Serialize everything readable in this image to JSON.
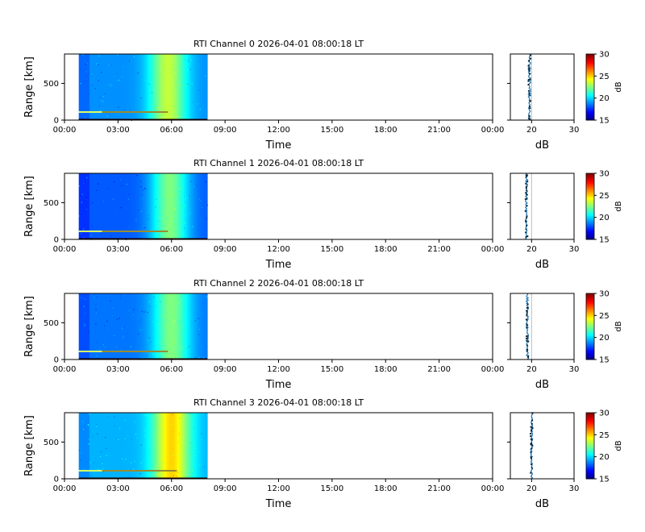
{
  "chart_data": [
    {
      "type": "heatmap",
      "title": "RTI Channel 0 2026-04-01 08:00:18 LT",
      "xlabel": "Time",
      "ylabel": "Range [km]",
      "x_ticks": [
        "00:00",
        "03:00",
        "06:00",
        "09:00",
        "12:00",
        "15:00",
        "18:00",
        "21:00",
        "00:00"
      ],
      "x_range_hours": [
        0,
        24
      ],
      "data_time_range_hours": [
        0.8,
        8.0
      ],
      "y_ticks": [
        0,
        500
      ],
      "y_range": [
        0,
        900
      ],
      "heat_peak_hour": 5.8,
      "heat_peak_db": 23.5,
      "heat_base_db": 19.0,
      "echo_line": {
        "range_km": 110,
        "start_hour": 0.8,
        "end_hour": 5.8
      },
      "profile": {
        "xlabel": "dB",
        "x_ticks": [
          20,
          30
        ],
        "x_range": [
          15,
          30
        ],
        "mean_db": 19.5,
        "reference_db": 20
      },
      "colorbar": {
        "label": "dB",
        "ticks": [
          15,
          20,
          25,
          30
        ],
        "range": [
          15,
          30
        ],
        "colormap": "jet"
      }
    },
    {
      "type": "heatmap",
      "title": "RTI Channel 1 2026-04-01 08:00:18 LT",
      "xlabel": "Time",
      "ylabel": "Range [km]",
      "x_ticks": [
        "00:00",
        "03:00",
        "06:00",
        "09:00",
        "12:00",
        "15:00",
        "18:00",
        "21:00",
        "00:00"
      ],
      "x_range_hours": [
        0,
        24
      ],
      "data_time_range_hours": [
        0.8,
        8.0
      ],
      "y_ticks": [
        0,
        500
      ],
      "y_range": [
        0,
        900
      ],
      "heat_peak_hour": 5.9,
      "heat_peak_db": 22.5,
      "heat_base_db": 18.2,
      "echo_line": {
        "range_km": 110,
        "start_hour": 0.8,
        "end_hour": 5.8
      },
      "profile": {
        "xlabel": "dB",
        "x_ticks": [
          20,
          30
        ],
        "x_range": [
          15,
          30
        ],
        "mean_db": 18.8,
        "reference_db": 20
      },
      "colorbar": {
        "label": "dB",
        "ticks": [
          15,
          20,
          25,
          30
        ],
        "range": [
          15,
          30
        ],
        "colormap": "jet"
      }
    },
    {
      "type": "heatmap",
      "title": "RTI Channel 2 2026-04-01 08:00:18 LT",
      "xlabel": "Time",
      "ylabel": "Range [km]",
      "x_ticks": [
        "00:00",
        "03:00",
        "06:00",
        "09:00",
        "12:00",
        "15:00",
        "18:00",
        "21:00",
        "00:00"
      ],
      "x_range_hours": [
        0,
        24
      ],
      "data_time_range_hours": [
        0.8,
        8.0
      ],
      "y_ticks": [
        0,
        500
      ],
      "y_range": [
        0,
        900
      ],
      "heat_peak_hour": 6.0,
      "heat_peak_db": 22.5,
      "heat_base_db": 18.6,
      "echo_line": {
        "range_km": 110,
        "start_hour": 0.8,
        "end_hour": 5.8
      },
      "profile": {
        "xlabel": "dB",
        "x_ticks": [
          20,
          30
        ],
        "x_range": [
          15,
          30
        ],
        "mean_db": 19.0,
        "reference_db": 20
      },
      "colorbar": {
        "label": "dB",
        "ticks": [
          15,
          20,
          25,
          30
        ],
        "range": [
          15,
          30
        ],
        "colormap": "jet"
      }
    },
    {
      "type": "heatmap",
      "title": "RTI Channel 3 2026-04-01 08:00:18 LT",
      "xlabel": "Time",
      "ylabel": "Range [km]",
      "x_ticks": [
        "00:00",
        "03:00",
        "06:00",
        "09:00",
        "12:00",
        "15:00",
        "18:00",
        "21:00",
        "00:00"
      ],
      "x_range_hours": [
        0,
        24
      ],
      "data_time_range_hours": [
        0.8,
        8.0
      ],
      "y_ticks": [
        0,
        500
      ],
      "y_range": [
        0,
        900
      ],
      "heat_peak_hour": 6.0,
      "heat_peak_db": 25.0,
      "heat_base_db": 19.5,
      "echo_line": {
        "range_km": 110,
        "start_hour": 0.8,
        "end_hour": 6.3
      },
      "profile": {
        "xlabel": "dB",
        "x_ticks": [
          20,
          30
        ],
        "x_range": [
          15,
          30
        ],
        "mean_db": 20.0,
        "reference_db": 20
      },
      "colorbar": {
        "label": "dB",
        "ticks": [
          15,
          20,
          25,
          30
        ],
        "range": [
          15,
          30
        ],
        "colormap": "jet"
      }
    }
  ]
}
